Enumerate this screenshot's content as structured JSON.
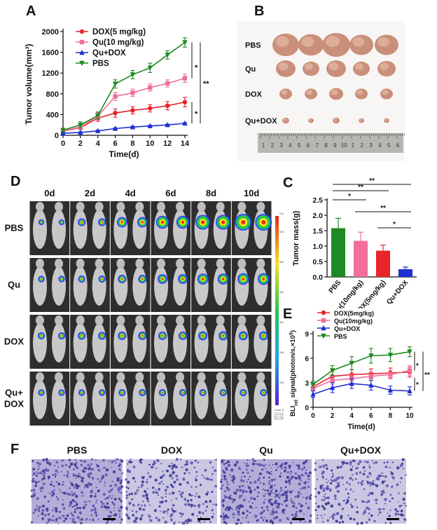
{
  "panels": {
    "A": "A",
    "B": "B",
    "C": "C",
    "D": "D",
    "E": "E",
    "F": "F"
  },
  "colors": {
    "dox": "#e8232a",
    "qu": "#f0709a",
    "qudox": "#1f2fd1",
    "pbs": "#1e8a23"
  },
  "chart_data": [
    {
      "id": "A",
      "type": "line",
      "title": "",
      "xlabel": "Time(d)",
      "ylabel": "Tumor volume(mm³)",
      "x": [
        0,
        2,
        4,
        6,
        8,
        10,
        12,
        14
      ],
      "xticks": [
        "0",
        "2",
        "4",
        "6",
        "8",
        "10",
        "12",
        "14"
      ],
      "ylim": [
        0,
        2000
      ],
      "yticks": [
        "0",
        "400",
        "800",
        "1200",
        "1600",
        "2000"
      ],
      "series": [
        {
          "name": "DOX(5 mg/kg)",
          "color": "#e8232a",
          "marker": "circle",
          "values": [
            80,
            150,
            330,
            430,
            480,
            520,
            570,
            640
          ],
          "err": [
            20,
            40,
            60,
            80,
            70,
            70,
            80,
            90
          ]
        },
        {
          "name": "Qu(10 mg/kg)",
          "color": "#f0709a",
          "marker": "square",
          "values": [
            85,
            160,
            370,
            750,
            820,
            920,
            1000,
            1100
          ],
          "err": [
            20,
            40,
            70,
            80,
            70,
            70,
            70,
            80
          ]
        },
        {
          "name": "Qu+DOX",
          "color": "#1f2fd1",
          "marker": "triangle",
          "values": [
            40,
            55,
            85,
            130,
            160,
            180,
            200,
            230
          ],
          "err": [
            10,
            10,
            15,
            15,
            15,
            15,
            15,
            15
          ]
        },
        {
          "name": "PBS",
          "color": "#1e8a23",
          "marker": "triangle-down",
          "values": [
            100,
            200,
            380,
            990,
            1170,
            1300,
            1550,
            1790
          ],
          "err": [
            30,
            60,
            70,
            80,
            80,
            90,
            80,
            90
          ]
        }
      ],
      "annotations": [
        "*",
        "**",
        "*"
      ]
    },
    {
      "id": "C",
      "type": "bar",
      "title": "",
      "xlabel": "",
      "ylabel": "Tumor mass(g)",
      "categories": [
        "PBS",
        "Qu(10mg/kg)",
        "DOX(5mg/kg)",
        "Qu+DOX"
      ],
      "values": [
        1.58,
        1.17,
        0.85,
        0.25
      ],
      "err": [
        0.32,
        0.28,
        0.18,
        0.07
      ],
      "colors": [
        "#1e8a23",
        "#f0709a",
        "#e8232a",
        "#1f2fd1"
      ],
      "ylim": [
        0,
        2.5
      ],
      "yticks": [
        "0.0",
        "0.5",
        "1.0",
        "1.5",
        "2.0",
        "2.5"
      ],
      "annotations": [
        "**",
        "**",
        "*",
        "**",
        "*"
      ]
    },
    {
      "id": "E",
      "type": "line",
      "title": "",
      "xlabel": "Time(d)",
      "ylabel_main": "BLI",
      "ylabel_sub": "rel",
      "ylabel_rest": " signal(photon/s,×10",
      "ylabel_sup": "5",
      "ylabel_end": ")",
      "x": [
        0,
        2,
        4,
        6,
        8,
        10
      ],
      "xticks": [
        "0",
        "2",
        "4",
        "6",
        "8",
        "10"
      ],
      "ylim": [
        0,
        9
      ],
      "yticks": [
        "0",
        "3",
        "6",
        "9"
      ],
      "series": [
        {
          "name": "DOX(5mg/kg)",
          "color": "#e8232a",
          "marker": "circle",
          "values": [
            2.5,
            3.8,
            4.0,
            4.1,
            4.2,
            4.3
          ],
          "err": [
            0.3,
            0.6,
            0.6,
            0.6,
            0.6,
            0.6
          ]
        },
        {
          "name": "Qu(10mg/kg)",
          "color": "#f0709a",
          "marker": "square",
          "values": [
            2.3,
            3.3,
            3.5,
            3.8,
            4.0,
            4.5
          ],
          "err": [
            0.3,
            0.5,
            0.5,
            0.5,
            0.5,
            0.6
          ]
        },
        {
          "name": "Qu+DOX",
          "color": "#1f2fd1",
          "marker": "triangle",
          "values": [
            1.6,
            2.4,
            2.9,
            2.7,
            2.1,
            2.0
          ],
          "err": [
            0.4,
            0.6,
            0.6,
            0.6,
            0.5,
            0.5
          ]
        },
        {
          "name": "PBS",
          "color": "#1e8a23",
          "marker": "triangle-down",
          "values": [
            2.8,
            4.5,
            5.4,
            6.3,
            6.4,
            6.8
          ],
          "err": [
            0.4,
            0.6,
            0.8,
            0.9,
            0.8,
            0.6
          ]
        }
      ],
      "annotations": [
        "*",
        "*",
        "**"
      ]
    }
  ],
  "photo_b": {
    "rows": [
      "PBS",
      "Qu",
      "DOX",
      "Qu+DOX"
    ],
    "ruler_marks": [
      "1",
      "2",
      "3",
      "4",
      "5",
      "6",
      "7",
      "8",
      "9",
      "10",
      "1",
      "2",
      "3",
      "4",
      "5",
      "6"
    ]
  },
  "imaging_d": {
    "days": [
      "0d",
      "2d",
      "4d",
      "6d",
      "8d",
      "10d"
    ],
    "rows": [
      "PBS",
      "Qu",
      "DOX",
      "Qu+\nDOX"
    ],
    "rows_lines": [
      [
        "PBS"
      ],
      [
        "Qu"
      ],
      [
        "DOX"
      ],
      [
        "Qu+",
        "DOX"
      ]
    ],
    "colorbar_title": "Color Scale",
    "colorbar_ticks": [
      "6000",
      "5000",
      "4000",
      "3000",
      "2000",
      "1000"
    ],
    "colorbar_unit": "Counts",
    "scale_note": [
      "Color Scale",
      "Min = 500",
      "Max = 7000"
    ]
  },
  "histology_f": {
    "labels": [
      "PBS",
      "DOX",
      "Qu",
      "Qu+DOX"
    ]
  }
}
